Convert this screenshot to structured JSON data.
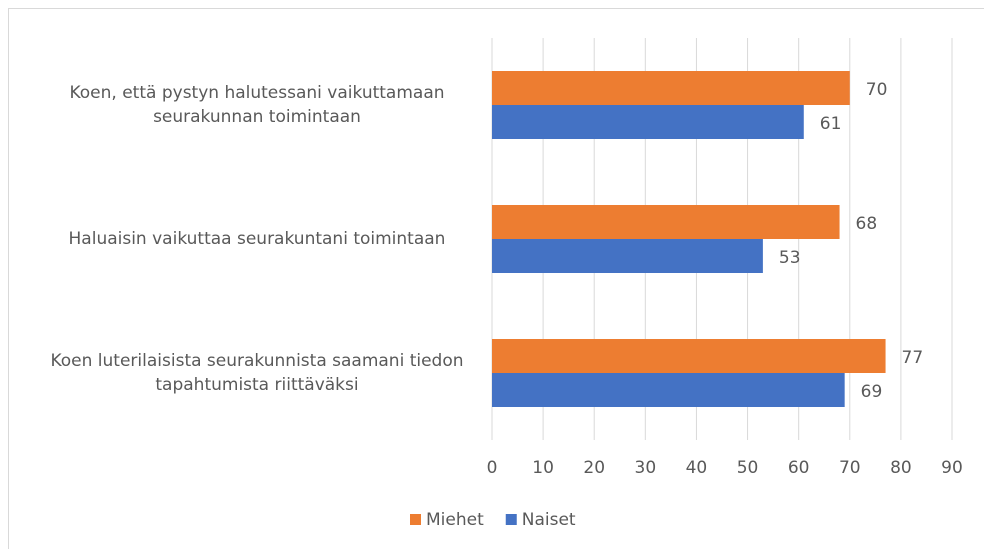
{
  "chart_data": {
    "type": "barh",
    "categories": [
      "Koen, että pystyn halutessani vaikuttamaan seurakunnan toimintaan",
      "Haluaisin vaikuttaa seurakuntani toimintaan",
      "Koen luterilaisista seurakunnista saamani tiedon tapahtumista riittäväksi"
    ],
    "series": [
      {
        "name": "Miehet",
        "color": "#ed7d31",
        "values": [
          70,
          68,
          77
        ]
      },
      {
        "name": "Naiset",
        "color": "#4472c4",
        "values": [
          61,
          53,
          69
        ]
      }
    ],
    "xlim": [
      0,
      90
    ],
    "xticks": [
      0,
      10,
      20,
      30,
      40,
      50,
      60,
      70,
      80,
      90
    ],
    "grid": true,
    "legend": "bottom"
  }
}
